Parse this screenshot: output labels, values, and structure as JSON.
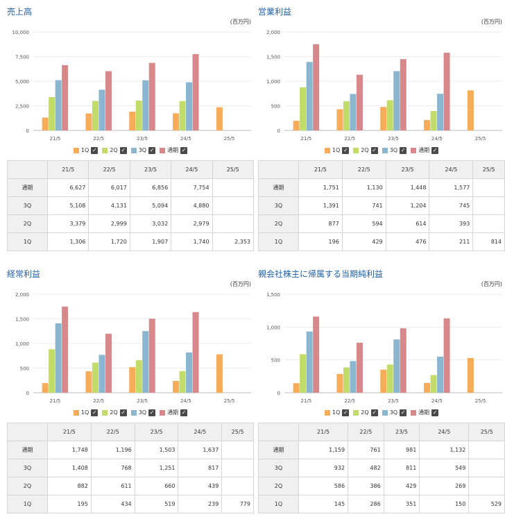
{
  "colors": {
    "q1": "#f6ac58",
    "q2": "#c2dc6a",
    "q3": "#8ab6cf",
    "full": "#d8878a"
  },
  "legend": [
    "1Q",
    "2Q",
    "3Q",
    "通期"
  ],
  "check_glyph": "✓",
  "unit": "(百万円)",
  "table_header": [
    "",
    "21/5",
    "22/5",
    "23/5",
    "24/5",
    "25/5"
  ],
  "panels": [
    {
      "title": "売上高",
      "chart_data": {
        "type": "bar",
        "title": "売上高",
        "categories": [
          "21/5",
          "22/5",
          "23/5",
          "24/5",
          "25/5"
        ],
        "ylim": [
          0,
          10000
        ],
        "yticks": [
          "0",
          "2,500",
          "5,000",
          "7,500",
          "10,000"
        ],
        "ytick_values": [
          0,
          2500,
          5000,
          7500,
          10000
        ],
        "series": [
          {
            "name": "1Q",
            "values": [
              1306,
              1720,
              1907,
              1740,
              2353
            ]
          },
          {
            "name": "2Q",
            "values": [
              3379,
              2999,
              3032,
              2979,
              null
            ]
          },
          {
            "name": "3Q",
            "values": [
              5108,
              4131,
              5094,
              4880,
              null
            ]
          },
          {
            "name": "通期",
            "values": [
              6627,
              6017,
              6856,
              7754,
              null
            ]
          }
        ]
      },
      "rows": [
        {
          "label": "通期",
          "cells": [
            "6,627",
            "6,017",
            "6,856",
            "7,754",
            ""
          ]
        },
        {
          "label": "3Q",
          "cells": [
            "5,108",
            "4,131",
            "5,094",
            "4,880",
            ""
          ]
        },
        {
          "label": "2Q",
          "cells": [
            "3,379",
            "2,999",
            "3,032",
            "2,979",
            ""
          ]
        },
        {
          "label": "1Q",
          "cells": [
            "1,306",
            "1,720",
            "1,907",
            "1,740",
            "2,353"
          ]
        }
      ]
    },
    {
      "title": "営業利益",
      "chart_data": {
        "type": "bar",
        "title": "営業利益",
        "categories": [
          "21/5",
          "22/5",
          "23/5",
          "24/5",
          "25/5"
        ],
        "ylim": [
          0,
          2000
        ],
        "yticks": [
          "0",
          "500",
          "1,000",
          "1,500",
          "2,000"
        ],
        "ytick_values": [
          0,
          500,
          1000,
          1500,
          2000
        ],
        "series": [
          {
            "name": "1Q",
            "values": [
              196,
              429,
              476,
              211,
              814
            ]
          },
          {
            "name": "2Q",
            "values": [
              877,
              594,
              614,
              393,
              null
            ]
          },
          {
            "name": "3Q",
            "values": [
              1391,
              741,
              1204,
              745,
              null
            ]
          },
          {
            "name": "通期",
            "values": [
              1751,
              1130,
              1448,
              1577,
              null
            ]
          }
        ]
      },
      "rows": [
        {
          "label": "通期",
          "cells": [
            "1,751",
            "1,130",
            "1,448",
            "1,577",
            ""
          ]
        },
        {
          "label": "3Q",
          "cells": [
            "1,391",
            "741",
            "1,204",
            "745",
            ""
          ]
        },
        {
          "label": "2Q",
          "cells": [
            "877",
            "594",
            "614",
            "393",
            ""
          ]
        },
        {
          "label": "1Q",
          "cells": [
            "196",
            "429",
            "476",
            "211",
            "814"
          ]
        }
      ]
    },
    {
      "title": "経常利益",
      "chart_data": {
        "type": "bar",
        "title": "経常利益",
        "categories": [
          "21/5",
          "22/5",
          "23/5",
          "24/5",
          "25/5"
        ],
        "ylim": [
          0,
          2000
        ],
        "yticks": [
          "0",
          "500",
          "1,000",
          "1,500",
          "2,000"
        ],
        "ytick_values": [
          0,
          500,
          1000,
          1500,
          2000
        ],
        "series": [
          {
            "name": "1Q",
            "values": [
              195,
              434,
              519,
              239,
              779
            ]
          },
          {
            "name": "2Q",
            "values": [
              882,
              611,
              660,
              439,
              null
            ]
          },
          {
            "name": "3Q",
            "values": [
              1408,
              768,
              1251,
              817,
              null
            ]
          },
          {
            "name": "通期",
            "values": [
              1748,
              1196,
              1503,
              1637,
              null
            ]
          }
        ]
      },
      "rows": [
        {
          "label": "通期",
          "cells": [
            "1,748",
            "1,196",
            "1,503",
            "1,637",
            ""
          ]
        },
        {
          "label": "3Q",
          "cells": [
            "1,408",
            "768",
            "1,251",
            "817",
            ""
          ]
        },
        {
          "label": "2Q",
          "cells": [
            "882",
            "611",
            "660",
            "439",
            ""
          ]
        },
        {
          "label": "1Q",
          "cells": [
            "195",
            "434",
            "519",
            "239",
            "779"
          ]
        }
      ]
    },
    {
      "title": "親会社株主に帰属する当期純利益",
      "chart_data": {
        "type": "bar",
        "title": "親会社株主に帰属する当期純利益",
        "categories": [
          "21/5",
          "22/5",
          "23/5",
          "24/5",
          "25/5"
        ],
        "ylim": [
          0,
          1500
        ],
        "yticks": [
          "0",
          "500",
          "1,000",
          "1,500"
        ],
        "ytick_values": [
          0,
          500,
          1000,
          1500
        ],
        "series": [
          {
            "name": "1Q",
            "values": [
              145,
              286,
              351,
              150,
              529
            ]
          },
          {
            "name": "2Q",
            "values": [
              586,
              386,
              429,
              269,
              null
            ]
          },
          {
            "name": "3Q",
            "values": [
              932,
              482,
              811,
              549,
              null
            ]
          },
          {
            "name": "通期",
            "values": [
              1159,
              761,
              981,
              1132,
              null
            ]
          }
        ]
      },
      "rows": [
        {
          "label": "通期",
          "cells": [
            "1,159",
            "761",
            "981",
            "1,132",
            ""
          ]
        },
        {
          "label": "3Q",
          "cells": [
            "932",
            "482",
            "811",
            "549",
            ""
          ]
        },
        {
          "label": "2Q",
          "cells": [
            "586",
            "386",
            "429",
            "269",
            ""
          ]
        },
        {
          "label": "1Q",
          "cells": [
            "145",
            "286",
            "351",
            "150",
            "529"
          ]
        }
      ]
    }
  ]
}
